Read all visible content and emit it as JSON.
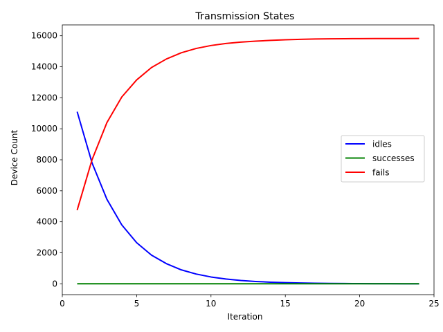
{
  "chart_data": {
    "type": "line",
    "title": "Transmission States",
    "xlabel": "Iteration",
    "ylabel": "Device Count",
    "xlim": [
      0,
      25
    ],
    "ylim": [
      -700,
      16700
    ],
    "xticks": [
      0,
      5,
      10,
      15,
      20,
      25
    ],
    "yticks": [
      0,
      2000,
      4000,
      6000,
      8000,
      10000,
      12000,
      14000,
      16000
    ],
    "grid": false,
    "legend_position": "center-right",
    "x": [
      1,
      2,
      3,
      4,
      5,
      6,
      7,
      8,
      9,
      10,
      11,
      12,
      13,
      14,
      15,
      16,
      17,
      18,
      19,
      20,
      21,
      22,
      23,
      24
    ],
    "series": [
      {
        "name": "idles",
        "color": "#0000ff",
        "values": [
          11100,
          7800,
          5450,
          3800,
          2650,
          1850,
          1300,
          900,
          630,
          440,
          310,
          215,
          150,
          105,
          75,
          52,
          36,
          25,
          18,
          12,
          9,
          6,
          4,
          3
        ]
      },
      {
        "name": "successes",
        "color": "#008000",
        "values": [
          0,
          0,
          0,
          0,
          0,
          0,
          0,
          0,
          0,
          0,
          0,
          0,
          0,
          0,
          0,
          0,
          0,
          0,
          0,
          0,
          0,
          0,
          0,
          0
        ]
      },
      {
        "name": "fails",
        "color": "#ff0000",
        "values": [
          4750,
          8000,
          10400,
          12050,
          13150,
          13950,
          14500,
          14900,
          15180,
          15370,
          15500,
          15590,
          15650,
          15700,
          15740,
          15770,
          15790,
          15800,
          15810,
          15815,
          15818,
          15820,
          15821,
          15822
        ]
      }
    ]
  }
}
